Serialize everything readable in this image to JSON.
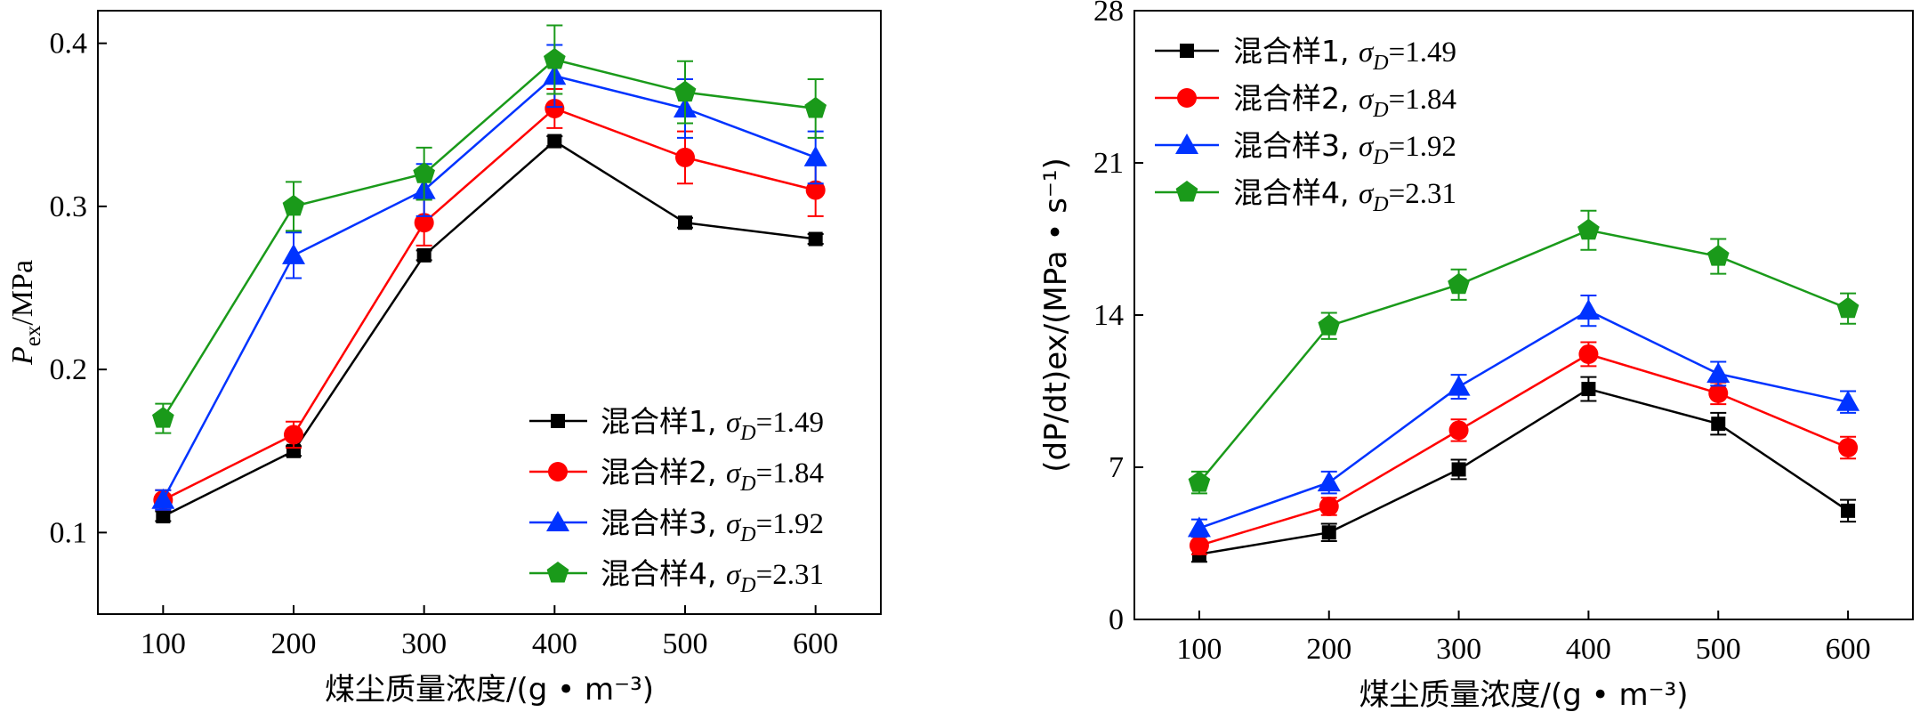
{
  "chart_data": [
    {
      "type": "line",
      "panel": "left",
      "x": [
        100,
        200,
        300,
        400,
        500,
        600
      ],
      "xlim": [
        50,
        650
      ],
      "ylim": [
        0.05,
        0.42
      ],
      "xticks": [
        "100",
        "200",
        "300",
        "400",
        "500",
        "600"
      ],
      "yticks": [
        "0.1",
        "0.2",
        "0.3",
        "0.4"
      ],
      "ytick_values": [
        0.1,
        0.2,
        0.3,
        0.4
      ],
      "xlabel": "煤尘质量浓度/(g • m⁻³)",
      "ylabel": "Pex/MPa",
      "ylabel_main": "P",
      "ylabel_sub": "ex",
      "ylabel_unit": "/MPa",
      "legend_position": "bottom-right",
      "series": [
        {
          "name": "混合样1, σD=1.49",
          "label": "混合样1, ",
          "sigma": "σ",
          "sigma_sub": "D",
          "value_text": "=1.49",
          "color": "#000000",
          "marker": "square",
          "values": [
            0.11,
            0.15,
            0.27,
            0.34,
            0.29,
            0.28
          ],
          "errors": [
            0.003,
            0.003,
            0.003,
            0.003,
            0.003,
            0.003
          ]
        },
        {
          "name": "混合样2, σD=1.84",
          "label": "混合样2, ",
          "sigma": "σ",
          "sigma_sub": "D",
          "value_text": "=1.84",
          "color": "#ff0000",
          "marker": "circle",
          "values": [
            0.12,
            0.16,
            0.29,
            0.36,
            0.33,
            0.31
          ],
          "errors": [
            0.006,
            0.008,
            0.014,
            0.012,
            0.016,
            0.016
          ]
        },
        {
          "name": "混合样3, σD=1.92",
          "label": "混合样3, ",
          "sigma": "σ",
          "sigma_sub": "D",
          "value_text": "=1.92",
          "color": "#0033ff",
          "marker": "triangle",
          "values": [
            0.12,
            0.27,
            0.31,
            0.38,
            0.36,
            0.33
          ],
          "errors": [
            0.006,
            0.014,
            0.016,
            0.019,
            0.018,
            0.016
          ]
        },
        {
          "name": "混合样4, σD=2.31",
          "label": "混合样4, ",
          "sigma": "σ",
          "sigma_sub": "D",
          "value_text": "=2.31",
          "color": "#1a9a1a",
          "marker": "pentagon",
          "values": [
            0.17,
            0.3,
            0.32,
            0.39,
            0.37,
            0.36
          ],
          "errors": [
            0.009,
            0.015,
            0.016,
            0.021,
            0.019,
            0.018
          ]
        }
      ]
    },
    {
      "type": "line",
      "panel": "right",
      "x": [
        100,
        200,
        300,
        400,
        500,
        600
      ],
      "xlim": [
        50,
        650
      ],
      "ylim": [
        0,
        28
      ],
      "xticks": [
        "100",
        "200",
        "300",
        "400",
        "500",
        "600"
      ],
      "yticks": [
        "0",
        "7",
        "14",
        "21",
        "28"
      ],
      "ytick_values": [
        0,
        7,
        14,
        21,
        28
      ],
      "xlabel": "煤尘质量浓度/(g • m⁻³)",
      "ylabel": "(dP/dt)ex/(MPa • s⁻¹)",
      "legend_position": "top-left",
      "series": [
        {
          "name": "混合样1, σD=1.49",
          "label": "混合样1, ",
          "sigma": "σ",
          "sigma_sub": "D",
          "value_text": "=1.49",
          "color": "#000000",
          "marker": "square",
          "values": [
            3.0,
            4.0,
            6.9,
            10.6,
            9.0,
            5.0
          ],
          "errors": [
            0.35,
            0.4,
            0.45,
            0.55,
            0.5,
            0.5
          ]
        },
        {
          "name": "混合样2, σD=1.84",
          "label": "混合样2, ",
          "sigma": "σ",
          "sigma_sub": "D",
          "value_text": "=1.84",
          "color": "#ff0000",
          "marker": "circle",
          "values": [
            3.4,
            5.2,
            8.7,
            12.2,
            10.4,
            7.9
          ],
          "errors": [
            0.4,
            0.4,
            0.5,
            0.55,
            0.5,
            0.5
          ]
        },
        {
          "name": "混合样3, σD=1.92",
          "label": "混合样3, ",
          "sigma": "σ",
          "sigma_sub": "D",
          "value_text": "=1.92",
          "color": "#0033ff",
          "marker": "triangle",
          "values": [
            4.2,
            6.3,
            10.7,
            14.2,
            11.3,
            10.0
          ],
          "errors": [
            0.4,
            0.5,
            0.55,
            0.7,
            0.55,
            0.5
          ]
        },
        {
          "name": "混合样4, σD=2.31",
          "label": "混合样4, ",
          "sigma": "σ",
          "sigma_sub": "D",
          "value_text": "=2.31",
          "color": "#1a9a1a",
          "marker": "pentagon",
          "values": [
            6.3,
            13.5,
            15.4,
            17.9,
            16.7,
            14.3
          ],
          "errors": [
            0.5,
            0.6,
            0.7,
            0.9,
            0.8,
            0.7
          ]
        }
      ]
    }
  ]
}
